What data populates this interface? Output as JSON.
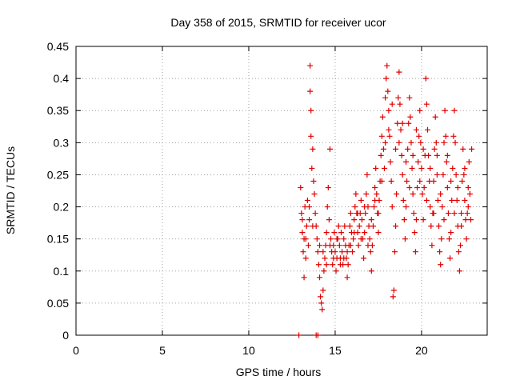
{
  "chart_data": {
    "type": "scatter",
    "title": "Day 358 of 2015, SRMTID for receiver ucor",
    "xlabel": "GPS time / hours",
    "ylabel": "SRMTID / TECUs",
    "xlim": [
      0,
      23.8
    ],
    "ylim": [
      0,
      0.45
    ],
    "xticks": [
      0,
      5,
      10,
      15,
      20
    ],
    "xtick_labels": [
      "0",
      "5",
      "10",
      "15",
      "20"
    ],
    "yticks": [
      0,
      0.05,
      0.1,
      0.15,
      0.2,
      0.25,
      0.3,
      0.35,
      0.4,
      0.45
    ],
    "ytick_labels": [
      "0",
      "0.05",
      "0.1",
      "0.15",
      "0.2",
      "0.25",
      "0.3",
      "0.35",
      "0.4",
      "0.45"
    ],
    "grid": true,
    "marker": "+",
    "color": "#e00000",
    "series": [
      {
        "name": "SRMTID",
        "points": [
          [
            12.9,
            0.0
          ],
          [
            13.9,
            0.0
          ],
          [
            14.0,
            0.0
          ],
          [
            13.0,
            0.23
          ],
          [
            13.05,
            0.19
          ],
          [
            13.1,
            0.16
          ],
          [
            13.15,
            0.13
          ],
          [
            13.2,
            0.09
          ],
          [
            13.2,
            0.15
          ],
          [
            13.25,
            0.2
          ],
          [
            13.3,
            0.12
          ],
          [
            13.35,
            0.17
          ],
          [
            13.4,
            0.21
          ],
          [
            13.45,
            0.14
          ],
          [
            13.5,
            0.18
          ],
          [
            13.55,
            0.42
          ],
          [
            13.55,
            0.38
          ],
          [
            13.6,
            0.35
          ],
          [
            13.6,
            0.31
          ],
          [
            13.65,
            0.26
          ],
          [
            13.7,
            0.29
          ],
          [
            13.75,
            0.24
          ],
          [
            13.8,
            0.22
          ],
          [
            13.85,
            0.19
          ],
          [
            13.9,
            0.17
          ],
          [
            13.95,
            0.15
          ],
          [
            14.0,
            0.13
          ],
          [
            14.05,
            0.11
          ],
          [
            14.1,
            0.09
          ],
          [
            14.15,
            0.06
          ],
          [
            14.2,
            0.05
          ],
          [
            14.25,
            0.04
          ],
          [
            14.3,
            0.07
          ],
          [
            14.35,
            0.1
          ],
          [
            14.4,
            0.12
          ],
          [
            14.45,
            0.14
          ],
          [
            14.5,
            0.16
          ],
          [
            14.55,
            0.2
          ],
          [
            14.6,
            0.23
          ],
          [
            14.65,
            0.18
          ],
          [
            14.7,
            0.29
          ],
          [
            14.75,
            0.15
          ],
          [
            14.8,
            0.13
          ],
          [
            14.85,
            0.11
          ],
          [
            14.9,
            0.14
          ],
          [
            14.95,
            0.16
          ],
          [
            15.0,
            0.13
          ],
          [
            15.05,
            0.1
          ],
          [
            15.1,
            0.12
          ],
          [
            15.15,
            0.15
          ],
          [
            15.2,
            0.17
          ],
          [
            15.25,
            0.14
          ],
          [
            15.3,
            0.12
          ],
          [
            15.35,
            0.16
          ],
          [
            15.4,
            0.13
          ],
          [
            15.45,
            0.11
          ],
          [
            15.5,
            0.15
          ],
          [
            15.55,
            0.17
          ],
          [
            15.6,
            0.14
          ],
          [
            15.65,
            0.12
          ],
          [
            15.7,
            0.09
          ],
          [
            15.75,
            0.11
          ],
          [
            15.8,
            0.14
          ],
          [
            15.85,
            0.17
          ],
          [
            15.9,
            0.19
          ],
          [
            15.95,
            0.16
          ],
          [
            16.0,
            0.13
          ],
          [
            16.05,
            0.15
          ],
          [
            16.1,
            0.18
          ],
          [
            16.15,
            0.2
          ],
          [
            16.2,
            0.22
          ],
          [
            16.25,
            0.19
          ],
          [
            16.3,
            0.16
          ],
          [
            16.35,
            0.14
          ],
          [
            16.4,
            0.17
          ],
          [
            16.45,
            0.19
          ],
          [
            16.5,
            0.21
          ],
          [
            16.55,
            0.18
          ],
          [
            16.6,
            0.15
          ],
          [
            16.65,
            0.12
          ],
          [
            16.7,
            0.16
          ],
          [
            16.75,
            0.19
          ],
          [
            16.8,
            0.22
          ],
          [
            16.85,
            0.25
          ],
          [
            16.9,
            0.2
          ],
          [
            16.95,
            0.17
          ],
          [
            17.0,
            0.15
          ],
          [
            17.05,
            0.13
          ],
          [
            17.1,
            0.1
          ],
          [
            17.15,
            0.14
          ],
          [
            17.2,
            0.17
          ],
          [
            17.25,
            0.2
          ],
          [
            17.3,
            0.23
          ],
          [
            17.35,
            0.26
          ],
          [
            17.4,
            0.22
          ],
          [
            17.45,
            0.19
          ],
          [
            17.5,
            0.16
          ],
          [
            17.55,
            0.21
          ],
          [
            17.6,
            0.24
          ],
          [
            17.65,
            0.28
          ],
          [
            17.7,
            0.31
          ],
          [
            17.75,
            0.34
          ],
          [
            17.8,
            0.29
          ],
          [
            17.85,
            0.26
          ],
          [
            17.9,
            0.37
          ],
          [
            17.95,
            0.4
          ],
          [
            18.0,
            0.42
          ],
          [
            18.05,
            0.38
          ],
          [
            18.1,
            0.35
          ],
          [
            18.15,
            0.31
          ],
          [
            18.2,
            0.27
          ],
          [
            18.25,
            0.24
          ],
          [
            18.3,
            0.2
          ],
          [
            18.35,
            0.06
          ],
          [
            18.4,
            0.07
          ],
          [
            18.45,
            0.13
          ],
          [
            18.5,
            0.17
          ],
          [
            18.55,
            0.22
          ],
          [
            18.6,
            0.33
          ],
          [
            18.65,
            0.37
          ],
          [
            18.7,
            0.41
          ],
          [
            18.75,
            0.36
          ],
          [
            18.8,
            0.32
          ],
          [
            18.85,
            0.28
          ],
          [
            18.9,
            0.25
          ],
          [
            18.95,
            0.21
          ],
          [
            19.0,
            0.18
          ],
          [
            19.05,
            0.15
          ],
          [
            19.1,
            0.2
          ],
          [
            19.15,
            0.24
          ],
          [
            19.2,
            0.29
          ],
          [
            19.25,
            0.33
          ],
          [
            19.3,
            0.37
          ],
          [
            19.35,
            0.34
          ],
          [
            19.4,
            0.3
          ],
          [
            19.45,
            0.26
          ],
          [
            19.5,
            0.22
          ],
          [
            19.55,
            0.19
          ],
          [
            19.6,
            0.16
          ],
          [
            19.65,
            0.13
          ],
          [
            19.7,
            0.18
          ],
          [
            19.75,
            0.23
          ],
          [
            19.8,
            0.27
          ],
          [
            19.85,
            0.31
          ],
          [
            19.9,
            0.35
          ],
          [
            19.95,
            0.3
          ],
          [
            20.0,
            0.26
          ],
          [
            20.05,
            0.22
          ],
          [
            20.1,
            0.18
          ],
          [
            20.15,
            0.23
          ],
          [
            20.2,
            0.28
          ],
          [
            20.25,
            0.4
          ],
          [
            20.3,
            0.36
          ],
          [
            20.35,
            0.32
          ],
          [
            20.4,
            0.28
          ],
          [
            20.45,
            0.24
          ],
          [
            20.5,
            0.2
          ],
          [
            20.55,
            0.17
          ],
          [
            20.6,
            0.14
          ],
          [
            20.65,
            0.19
          ],
          [
            20.7,
            0.24
          ],
          [
            20.75,
            0.29
          ],
          [
            20.8,
            0.34
          ],
          [
            20.85,
            0.3
          ],
          [
            20.9,
            0.25
          ],
          [
            20.95,
            0.21
          ],
          [
            21.0,
            0.17
          ],
          [
            21.05,
            0.13
          ],
          [
            21.1,
            0.11
          ],
          [
            21.15,
            0.15
          ],
          [
            21.2,
            0.2
          ],
          [
            21.25,
            0.25
          ],
          [
            21.3,
            0.3
          ],
          [
            21.35,
            0.35
          ],
          [
            21.4,
            0.31
          ],
          [
            21.45,
            0.27
          ],
          [
            21.5,
            0.23
          ],
          [
            21.55,
            0.19
          ],
          [
            21.6,
            0.15
          ],
          [
            21.65,
            0.12
          ],
          [
            21.7,
            0.16
          ],
          [
            21.75,
            0.21
          ],
          [
            21.8,
            0.26
          ],
          [
            21.85,
            0.31
          ],
          [
            21.9,
            0.35
          ],
          [
            21.95,
            0.3
          ],
          [
            22.0,
            0.25
          ],
          [
            22.05,
            0.21
          ],
          [
            22.1,
            0.17
          ],
          [
            22.15,
            0.13
          ],
          [
            22.2,
            0.1
          ],
          [
            22.25,
            0.14
          ],
          [
            22.3,
            0.19
          ],
          [
            22.35,
            0.24
          ],
          [
            22.4,
            0.29
          ],
          [
            22.45,
            0.25
          ],
          [
            22.5,
            0.21
          ],
          [
            22.55,
            0.18
          ],
          [
            22.6,
            0.15
          ],
          [
            22.65,
            0.19
          ],
          [
            22.7,
            0.23
          ],
          [
            22.75,
            0.27
          ],
          [
            22.8,
            0.22
          ],
          [
            22.85,
            0.18
          ],
          [
            22.9,
            0.29
          ],
          [
            13.1,
            0.18
          ],
          [
            13.3,
            0.15
          ],
          [
            13.5,
            0.2
          ],
          [
            13.7,
            0.17
          ],
          [
            14.1,
            0.14
          ],
          [
            14.3,
            0.13
          ],
          [
            14.5,
            0.11
          ],
          [
            14.7,
            0.14
          ],
          [
            14.9,
            0.12
          ],
          [
            15.1,
            0.15
          ],
          [
            15.3,
            0.11
          ],
          [
            15.5,
            0.12
          ],
          [
            15.7,
            0.13
          ],
          [
            15.9,
            0.14
          ],
          [
            16.1,
            0.16
          ],
          [
            16.3,
            0.19
          ],
          [
            16.5,
            0.15
          ],
          [
            16.7,
            0.2
          ],
          [
            16.9,
            0.14
          ],
          [
            17.1,
            0.18
          ],
          [
            17.3,
            0.21
          ],
          [
            17.5,
            0.19
          ],
          [
            17.7,
            0.24
          ],
          [
            17.9,
            0.3
          ],
          [
            18.1,
            0.32
          ],
          [
            18.3,
            0.36
          ],
          [
            18.5,
            0.29
          ],
          [
            18.7,
            0.3
          ],
          [
            18.9,
            0.33
          ],
          [
            19.1,
            0.27
          ],
          [
            19.3,
            0.23
          ],
          [
            19.5,
            0.28
          ],
          [
            19.7,
            0.32
          ],
          [
            19.9,
            0.24
          ],
          [
            20.1,
            0.29
          ],
          [
            20.3,
            0.21
          ],
          [
            20.5,
            0.26
          ],
          [
            20.7,
            0.19
          ],
          [
            20.9,
            0.28
          ],
          [
            21.1,
            0.22
          ],
          [
            21.3,
            0.18
          ],
          [
            21.5,
            0.28
          ],
          [
            21.7,
            0.24
          ],
          [
            21.9,
            0.19
          ],
          [
            22.1,
            0.23
          ],
          [
            22.3,
            0.17
          ],
          [
            22.5,
            0.26
          ],
          [
            22.7,
            0.2
          ]
        ]
      }
    ]
  }
}
